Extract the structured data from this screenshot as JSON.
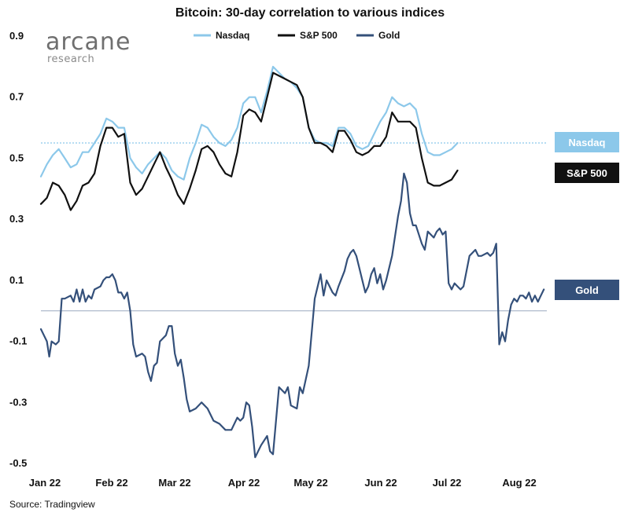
{
  "chart_data": {
    "type": "line",
    "title": "Bitcoin: 30-day correlation to various indices",
    "xlabel": "",
    "ylabel": "",
    "ylim": [
      -0.5,
      0.9
    ],
    "y_ticks": [
      "0.9",
      "0.7",
      "0.5",
      "0.3",
      "0.1",
      "-0.1",
      "-0.3",
      "-0.5"
    ],
    "x_ticks": [
      "Jan 22",
      "Feb 22",
      "Mar 22",
      "Apr 22",
      "May 22",
      "Jun 22",
      "Jul 22",
      "Aug 22"
    ],
    "legend_position": "top",
    "series": [
      {
        "name": "Nasdaq",
        "color": "#8cc8ea",
        "tag": "Nasdaq",
        "points": [
          [
            0,
            0.44
          ],
          [
            1,
            0.48
          ],
          [
            2,
            0.51
          ],
          [
            3,
            0.53
          ],
          [
            4,
            0.5
          ],
          [
            5,
            0.47
          ],
          [
            6,
            0.48
          ],
          [
            7,
            0.52
          ],
          [
            8,
            0.52
          ],
          [
            9,
            0.55
          ],
          [
            10,
            0.58
          ],
          [
            11,
            0.63
          ],
          [
            12,
            0.62
          ],
          [
            13,
            0.6
          ],
          [
            14,
            0.6
          ],
          [
            15,
            0.5
          ],
          [
            16,
            0.47
          ],
          [
            17,
            0.45
          ],
          [
            18,
            0.48
          ],
          [
            19,
            0.5
          ],
          [
            20,
            0.52
          ],
          [
            21,
            0.5
          ],
          [
            22,
            0.46
          ],
          [
            23,
            0.44
          ],
          [
            24,
            0.43
          ],
          [
            25,
            0.5
          ],
          [
            26,
            0.55
          ],
          [
            27,
            0.61
          ],
          [
            28,
            0.6
          ],
          [
            29,
            0.57
          ],
          [
            30,
            0.55
          ],
          [
            31,
            0.54
          ],
          [
            32,
            0.56
          ],
          [
            33,
            0.6
          ],
          [
            34,
            0.68
          ],
          [
            35,
            0.7
          ],
          [
            36,
            0.7
          ],
          [
            37,
            0.65
          ],
          [
            38,
            0.72
          ],
          [
            39,
            0.8
          ],
          [
            40,
            0.78
          ],
          [
            41,
            0.76
          ],
          [
            42,
            0.75
          ],
          [
            43,
            0.73
          ],
          [
            44,
            0.7
          ],
          [
            45,
            0.6
          ],
          [
            46,
            0.56
          ],
          [
            47,
            0.55
          ],
          [
            48,
            0.55
          ],
          [
            49,
            0.54
          ],
          [
            50,
            0.6
          ],
          [
            51,
            0.6
          ],
          [
            52,
            0.58
          ],
          [
            53,
            0.54
          ],
          [
            54,
            0.53
          ],
          [
            55,
            0.54
          ],
          [
            56,
            0.58
          ],
          [
            57,
            0.62
          ],
          [
            58,
            0.65
          ],
          [
            59,
            0.7
          ],
          [
            60,
            0.68
          ],
          [
            61,
            0.67
          ],
          [
            62,
            0.68
          ],
          [
            63,
            0.66
          ],
          [
            64,
            0.58
          ],
          [
            65,
            0.52
          ],
          [
            66,
            0.51
          ],
          [
            67,
            0.51
          ],
          [
            68,
            0.52
          ],
          [
            69,
            0.53
          ],
          [
            70,
            0.55
          ]
        ]
      },
      {
        "name": "S&P 500",
        "color": "#111111",
        "tag": "S&P 500",
        "points": [
          [
            0,
            0.35
          ],
          [
            1,
            0.37
          ],
          [
            2,
            0.42
          ],
          [
            3,
            0.41
          ],
          [
            4,
            0.38
          ],
          [
            5,
            0.33
          ],
          [
            6,
            0.36
          ],
          [
            7,
            0.41
          ],
          [
            8,
            0.42
          ],
          [
            9,
            0.45
          ],
          [
            10,
            0.54
          ],
          [
            11,
            0.6
          ],
          [
            12,
            0.6
          ],
          [
            13,
            0.57
          ],
          [
            14,
            0.58
          ],
          [
            15,
            0.42
          ],
          [
            16,
            0.38
          ],
          [
            17,
            0.4
          ],
          [
            18,
            0.44
          ],
          [
            19,
            0.48
          ],
          [
            20,
            0.52
          ],
          [
            21,
            0.47
          ],
          [
            22,
            0.43
          ],
          [
            23,
            0.38
          ],
          [
            24,
            0.35
          ],
          [
            25,
            0.4
          ],
          [
            26,
            0.46
          ],
          [
            27,
            0.53
          ],
          [
            28,
            0.54
          ],
          [
            29,
            0.52
          ],
          [
            30,
            0.48
          ],
          [
            31,
            0.45
          ],
          [
            32,
            0.44
          ],
          [
            33,
            0.52
          ],
          [
            34,
            0.64
          ],
          [
            35,
            0.66
          ],
          [
            36,
            0.65
          ],
          [
            37,
            0.62
          ],
          [
            38,
            0.7
          ],
          [
            39,
            0.78
          ],
          [
            40,
            0.77
          ],
          [
            41,
            0.76
          ],
          [
            42,
            0.75
          ],
          [
            43,
            0.74
          ],
          [
            44,
            0.7
          ],
          [
            45,
            0.6
          ],
          [
            46,
            0.55
          ],
          [
            47,
            0.55
          ],
          [
            48,
            0.54
          ],
          [
            49,
            0.52
          ],
          [
            50,
            0.59
          ],
          [
            51,
            0.59
          ],
          [
            52,
            0.56
          ],
          [
            53,
            0.52
          ],
          [
            54,
            0.51
          ],
          [
            55,
            0.52
          ],
          [
            56,
            0.54
          ],
          [
            57,
            0.54
          ],
          [
            58,
            0.57
          ],
          [
            59,
            0.65
          ],
          [
            60,
            0.62
          ],
          [
            61,
            0.62
          ],
          [
            62,
            0.62
          ],
          [
            63,
            0.6
          ],
          [
            64,
            0.5
          ],
          [
            65,
            0.42
          ],
          [
            66,
            0.41
          ],
          [
            67,
            0.41
          ],
          [
            68,
            0.42
          ],
          [
            69,
            0.43
          ],
          [
            70,
            0.46
          ]
        ]
      },
      {
        "name": "Gold",
        "color": "#34507a",
        "tag": "Gold",
        "points": [
          [
            0,
            -0.06
          ],
          [
            0.5,
            -0.08
          ],
          [
            1,
            -0.1
          ],
          [
            1.4,
            -0.15
          ],
          [
            1.8,
            -0.1
          ],
          [
            2.5,
            -0.11
          ],
          [
            3,
            -0.1
          ],
          [
            3.5,
            0.04
          ],
          [
            4,
            0.04
          ],
          [
            5,
            0.05
          ],
          [
            5.5,
            0.03
          ],
          [
            6,
            0.07
          ],
          [
            6.5,
            0.03
          ],
          [
            7,
            0.07
          ],
          [
            7.5,
            0.03
          ],
          [
            8,
            0.05
          ],
          [
            8.5,
            0.04
          ],
          [
            9,
            0.07
          ],
          [
            10,
            0.08
          ],
          [
            10.5,
            0.1
          ],
          [
            11,
            0.11
          ],
          [
            11.5,
            0.11
          ],
          [
            12,
            0.12
          ],
          [
            12.5,
            0.1
          ],
          [
            13,
            0.06
          ],
          [
            13.5,
            0.06
          ],
          [
            14,
            0.04
          ],
          [
            14.5,
            0.06
          ],
          [
            15,
            0.0
          ],
          [
            15.5,
            -0.11
          ],
          [
            16,
            -0.15
          ],
          [
            17,
            -0.14
          ],
          [
            17.5,
            -0.15
          ],
          [
            18,
            -0.2
          ],
          [
            18.5,
            -0.23
          ],
          [
            19,
            -0.18
          ],
          [
            19.5,
            -0.17
          ],
          [
            20,
            -0.1
          ],
          [
            21,
            -0.08
          ],
          [
            21.5,
            -0.05
          ],
          [
            22,
            -0.05
          ],
          [
            22.5,
            -0.14
          ],
          [
            23,
            -0.18
          ],
          [
            23.5,
            -0.16
          ],
          [
            24,
            -0.22
          ],
          [
            24.5,
            -0.29
          ],
          [
            25,
            -0.33
          ],
          [
            26,
            -0.32
          ],
          [
            27,
            -0.3
          ],
          [
            28,
            -0.32
          ],
          [
            29,
            -0.36
          ],
          [
            30,
            -0.37
          ],
          [
            31,
            -0.39
          ],
          [
            32,
            -0.39
          ],
          [
            33,
            -0.35
          ],
          [
            33.5,
            -0.36
          ],
          [
            34,
            -0.35
          ],
          [
            34.5,
            -0.3
          ],
          [
            35,
            -0.31
          ],
          [
            35.5,
            -0.38
          ],
          [
            36,
            -0.48
          ],
          [
            37,
            -0.44
          ],
          [
            38,
            -0.41
          ],
          [
            38.5,
            -0.46
          ],
          [
            39,
            -0.47
          ],
          [
            39.5,
            -0.36
          ],
          [
            40,
            -0.25
          ],
          [
            41,
            -0.27
          ],
          [
            41.5,
            -0.25
          ],
          [
            42,
            -0.31
          ],
          [
            43,
            -0.32
          ],
          [
            43.5,
            -0.25
          ],
          [
            44,
            -0.27
          ],
          [
            45,
            -0.18
          ],
          [
            46,
            0.04
          ],
          [
            47,
            0.12
          ],
          [
            47.5,
            0.05
          ],
          [
            48,
            0.1
          ],
          [
            48.5,
            0.08
          ],
          [
            49,
            0.06
          ],
          [
            49.5,
            0.05
          ],
          [
            50,
            0.08
          ],
          [
            51,
            0.13
          ],
          [
            51.5,
            0.17
          ],
          [
            52,
            0.19
          ],
          [
            52.5,
            0.2
          ],
          [
            53,
            0.18
          ],
          [
            53.5,
            0.14
          ],
          [
            54,
            0.1
          ],
          [
            54.5,
            0.06
          ],
          [
            55,
            0.08
          ],
          [
            55.5,
            0.12
          ],
          [
            56,
            0.14
          ],
          [
            56.5,
            0.09
          ],
          [
            57,
            0.12
          ],
          [
            57.5,
            0.07
          ],
          [
            58,
            0.1
          ],
          [
            59,
            0.18
          ],
          [
            60,
            0.31
          ],
          [
            60.5,
            0.36
          ],
          [
            61,
            0.45
          ],
          [
            61.5,
            0.42
          ],
          [
            62,
            0.32
          ],
          [
            62.5,
            0.28
          ],
          [
            63,
            0.28
          ],
          [
            64,
            0.22
          ],
          [
            64.5,
            0.2
          ],
          [
            65,
            0.26
          ],
          [
            66,
            0.24
          ],
          [
            66.5,
            0.26
          ],
          [
            67,
            0.27
          ],
          [
            67.5,
            0.25
          ],
          [
            68,
            0.26
          ],
          [
            68.5,
            0.09
          ],
          [
            69,
            0.07
          ],
          [
            69.5,
            0.09
          ],
          [
            70,
            0.08
          ],
          [
            70.5,
            0.07
          ],
          [
            71,
            0.08
          ],
          [
            72,
            0.18
          ],
          [
            73,
            0.2
          ],
          [
            73.5,
            0.18
          ],
          [
            74,
            0.18
          ],
          [
            75,
            0.19
          ],
          [
            75.5,
            0.18
          ],
          [
            76,
            0.19
          ],
          [
            76.5,
            0.22
          ],
          [
            77,
            -0.11
          ],
          [
            77.5,
            -0.07
          ],
          [
            78,
            -0.1
          ],
          [
            78.5,
            -0.03
          ],
          [
            79,
            0.02
          ],
          [
            79.5,
            0.04
          ],
          [
            80,
            0.03
          ],
          [
            80.5,
            0.05
          ],
          [
            81,
            0.05
          ],
          [
            81.5,
            0.04
          ],
          [
            82,
            0.06
          ],
          [
            82.5,
            0.03
          ],
          [
            83,
            0.05
          ],
          [
            83.5,
            0.03
          ],
          [
            84,
            0.05
          ],
          [
            84.5,
            0.07
          ]
        ]
      }
    ],
    "reference_lines": [
      {
        "name": "nasdaq-last-value",
        "y": 0.55,
        "style": "dotted",
        "color": "#8cc8ea"
      },
      {
        "name": "zero-line",
        "y": 0.0,
        "style": "solid",
        "color": "#9aa9bf"
      }
    ]
  },
  "logo": {
    "name": "arcane",
    "subtitle": "research"
  },
  "source": "Source: Tradingview"
}
